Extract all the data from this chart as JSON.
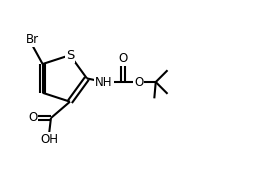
{
  "background_color": "#ffffff",
  "line_color": "#000000",
  "line_width": 1.5,
  "font_size": 8.5,
  "figsize": [
    2.68,
    1.84
  ],
  "dpi": 100,
  "xlim": [
    0.0,
    1.3
  ],
  "ylim": [
    0.0,
    1.0
  ]
}
